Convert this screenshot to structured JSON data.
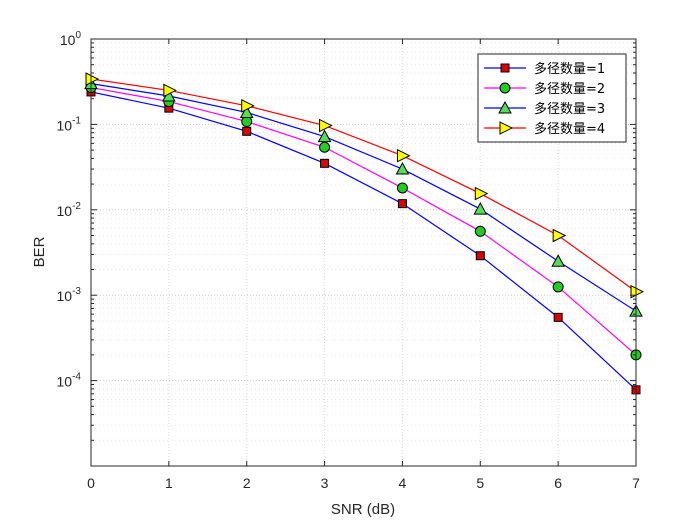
{
  "chart_data": {
    "type": "line",
    "xlabel": "SNR (dB)",
    "ylabel": "BER",
    "x": [
      0,
      1,
      2,
      3,
      4,
      5,
      6,
      7
    ],
    "xlim": [
      0,
      7
    ],
    "ylim": [
      1e-05,
      1
    ],
    "yscale": "log",
    "grid": true,
    "minor_grid": true,
    "legend_position": "top-right",
    "xticks": [
      "0",
      "1",
      "2",
      "3",
      "4",
      "5",
      "6",
      "7"
    ],
    "yticks": [
      {
        "base": "10",
        "exp": "-4",
        "value": 0.0001
      },
      {
        "base": "10",
        "exp": "-3",
        "value": 0.001
      },
      {
        "base": "10",
        "exp": "-2",
        "value": 0.01
      },
      {
        "base": "10",
        "exp": "-1",
        "value": 0.1
      },
      {
        "base": "10",
        "exp": "0",
        "value": 1
      }
    ],
    "series": [
      {
        "name": "多径数量=1",
        "color": "#0000ff",
        "marker": "square",
        "marker_color": "#dd0000",
        "values": [
          0.24,
          0.155,
          0.083,
          0.035,
          0.0118,
          0.0029,
          0.00055,
          7.8e-05
        ]
      },
      {
        "name": "多径数量=2",
        "color": "#ff00ff",
        "marker": "circle",
        "marker_color": "#22cc22",
        "values": [
          0.27,
          0.185,
          0.108,
          0.054,
          0.018,
          0.0056,
          0.00125,
          0.0002
        ]
      },
      {
        "name": "多径数量=3",
        "color": "#0000ff",
        "marker": "triangle-up",
        "marker_color": "#55dd55",
        "values": [
          0.3,
          0.215,
          0.138,
          0.072,
          0.03,
          0.0102,
          0.0025,
          0.00065
        ]
      },
      {
        "name": "多径数量=4",
        "color": "#ff0000",
        "marker": "triangle-right",
        "marker_color": "#ffff00",
        "values": [
          0.34,
          0.25,
          0.165,
          0.097,
          0.043,
          0.0155,
          0.005,
          0.0011
        ]
      }
    ]
  }
}
